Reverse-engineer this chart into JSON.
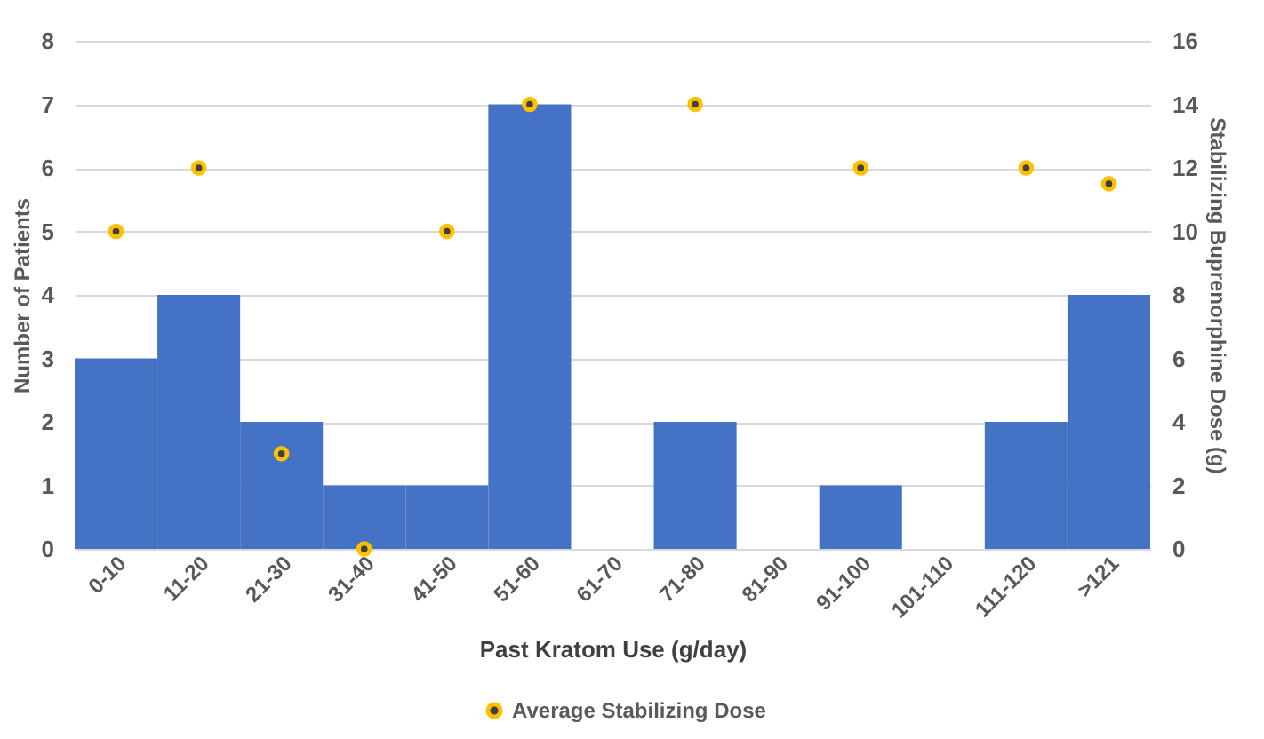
{
  "chart_data": {
    "type": "bar",
    "xlabel": "Past Kratom Use (g/day)",
    "ylabel": "Number of Patients",
    "y2label": "Stabilizing Buprenorphine Dose (g)",
    "categories": [
      "0-10",
      "11-20",
      "21-30",
      "31-40",
      "41-50",
      "51-60",
      "61-70",
      "71-80",
      "81-90",
      "91-100",
      "101-110",
      "111-120",
      ">121"
    ],
    "series": [
      {
        "color": "#4472c4",
        "values": [
          3,
          4,
          2,
          1,
          1,
          7,
          0,
          2,
          0,
          1,
          0,
          2,
          4
        ]
      },
      {
        "type": "scatter",
        "name": "Average Stabilizing Dose",
        "axis": "y2",
        "color": "#ffc000",
        "marker": "circle",
        "values": [
          10,
          12,
          3,
          0,
          10,
          14,
          null,
          14,
          null,
          12,
          null,
          12,
          11.5
        ]
      }
    ],
    "ylim": [
      0,
      8
    ],
    "yticks": [
      0,
      1,
      2,
      3,
      4,
      5,
      6,
      7,
      8
    ],
    "y2lim": [
      0,
      16
    ],
    "y2ticks": [
      0,
      2,
      4,
      6,
      8,
      10,
      12,
      14,
      16
    ],
    "grid": "y",
    "legend": "bottom"
  }
}
